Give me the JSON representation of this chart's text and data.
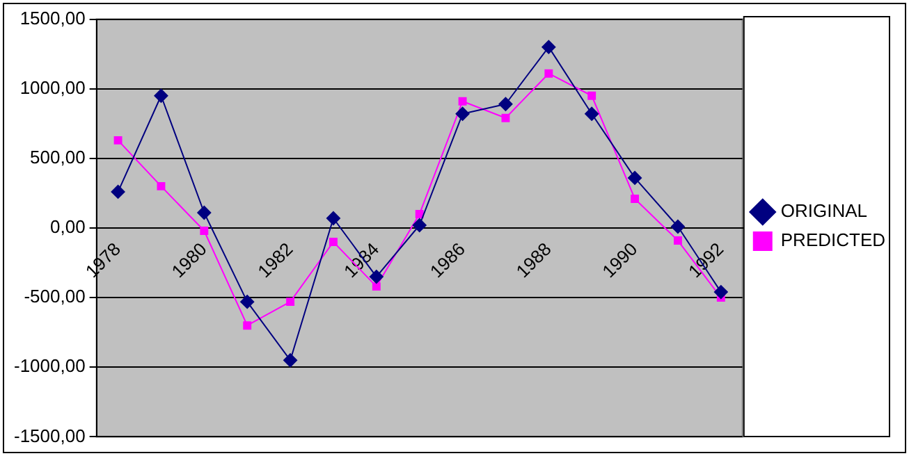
{
  "chart_data": {
    "type": "line",
    "categories": [
      "1978",
      null,
      "1980",
      null,
      "1982",
      null,
      "1984",
      null,
      "1986",
      null,
      "1988",
      null,
      "1990",
      null,
      "1992"
    ],
    "series": [
      {
        "name": "ORIGINAL",
        "color": "#000080",
        "marker": "diamond",
        "values": [
          260,
          950,
          110,
          -530,
          -950,
          70,
          -350,
          20,
          820,
          890,
          1300,
          820,
          360,
          10,
          -460
        ]
      },
      {
        "name": "PREDICTED",
        "color": "#ff00ff",
        "marker": "square",
        "values": [
          630,
          300,
          -20,
          -700,
          -530,
          -100,
          -420,
          100,
          910,
          790,
          1110,
          950,
          210,
          -90,
          -500
        ]
      }
    ],
    "ylim": [
      -1500,
      1500
    ],
    "yticks": [
      {
        "value": -1500,
        "label": "-1500,00"
      },
      {
        "value": -1000,
        "label": "-1000,00"
      },
      {
        "value": -500,
        "label": "-500,00"
      },
      {
        "value": 0,
        "label": "0,00"
      },
      {
        "value": 500,
        "label": "500,00"
      },
      {
        "value": 1000,
        "label": "1000,00"
      },
      {
        "value": 1500,
        "label": "1500,00"
      }
    ],
    "grid": "y",
    "legend": "right"
  }
}
